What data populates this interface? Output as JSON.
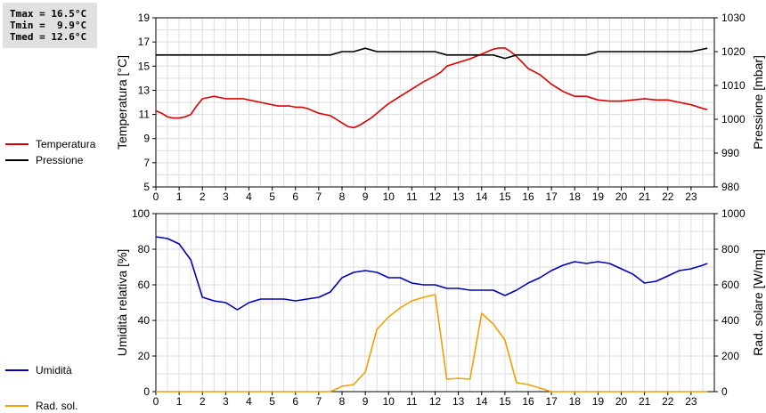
{
  "stats": {
    "tmax": "Tmax = 16.5°C",
    "tmin": "Tmin =  9.9°C",
    "tmed": "Tmed = 12.6°C"
  },
  "legend": {
    "temperature": "Temperatura",
    "pressure": "Pressione",
    "humidity": "Umidità",
    "solar": "Rad. sol."
  },
  "colors": {
    "temperature": "#dd0000",
    "pressure": "#000000",
    "humidity": "#0000bb",
    "solar": "#f0a000",
    "grid": "#dddddd"
  },
  "chart_data": [
    {
      "type": "line",
      "ylabel": "Temperatura [°C]",
      "y2label": "Pressione [mbar]",
      "xlim": [
        0,
        24
      ],
      "ylim": [
        5,
        19
      ],
      "y2lim": [
        980,
        1030
      ],
      "xticks": [
        "0",
        "1",
        "2",
        "3",
        "4",
        "5",
        "6",
        "7",
        "8",
        "9",
        "10",
        "11",
        "12",
        "13",
        "14",
        "15",
        "16",
        "17",
        "18",
        "19",
        "20",
        "21",
        "22",
        "23"
      ],
      "yticks": [
        "5",
        "7",
        "9",
        "11",
        "13",
        "15",
        "17",
        "19"
      ],
      "y2ticks": [
        "980",
        "990",
        "1000",
        "1010",
        "1020",
        "1030"
      ],
      "grid": true,
      "series": [
        {
          "name": "Temperatura",
          "axis": "left",
          "x": [
            0,
            0.25,
            0.5,
            0.75,
            1,
            1.25,
            1.5,
            1.75,
            2,
            2.25,
            2.5,
            2.75,
            3,
            3.25,
            3.5,
            3.75,
            4,
            4.25,
            4.5,
            4.75,
            5,
            5.25,
            5.5,
            5.75,
            6,
            6.25,
            6.5,
            6.75,
            7,
            7.25,
            7.5,
            7.75,
            8,
            8.25,
            8.5,
            8.75,
            9,
            9.25,
            9.5,
            9.75,
            10,
            10.5,
            11,
            11.5,
            12,
            12.25,
            12.5,
            13,
            13.5,
            14,
            14.25,
            14.5,
            14.75,
            15,
            15.25,
            15.5,
            15.75,
            16,
            16.5,
            17,
            17.5,
            18,
            18.5,
            19,
            19.5,
            20,
            20.5,
            21,
            21.5,
            22,
            22.5,
            23,
            23.5,
            23.7
          ],
          "y": [
            11.3,
            11.1,
            10.8,
            10.7,
            10.7,
            10.8,
            11.0,
            11.7,
            12.3,
            12.4,
            12.5,
            12.4,
            12.3,
            12.3,
            12.3,
            12.3,
            12.2,
            12.1,
            12.0,
            11.9,
            11.8,
            11.7,
            11.7,
            11.7,
            11.6,
            11.6,
            11.5,
            11.3,
            11.1,
            11.0,
            10.9,
            10.6,
            10.3,
            10.0,
            9.9,
            10.1,
            10.4,
            10.7,
            11.1,
            11.5,
            11.9,
            12.5,
            13.1,
            13.7,
            14.2,
            14.5,
            15.0,
            15.3,
            15.6,
            16.0,
            16.2,
            16.4,
            16.5,
            16.5,
            16.2,
            15.8,
            15.3,
            14.8,
            14.3,
            13.5,
            12.9,
            12.5,
            12.5,
            12.2,
            12.1,
            12.1,
            12.2,
            12.3,
            12.2,
            12.2,
            12.0,
            11.8,
            11.5,
            11.4
          ]
        },
        {
          "name": "Pressione",
          "axis": "right",
          "x": [
            0,
            0.5,
            1,
            2,
            3,
            4,
            5,
            6,
            7,
            7.5,
            8,
            8.5,
            9,
            9.5,
            10,
            11,
            12,
            12.5,
            13,
            14,
            14.5,
            15,
            15.5,
            16,
            17,
            18,
            18.5,
            19,
            20,
            21,
            22,
            23,
            23.7
          ],
          "y": [
            1019,
            1019,
            1019,
            1019,
            1019,
            1019,
            1019,
            1019,
            1019,
            1019,
            1020,
            1020,
            1021,
            1020,
            1020,
            1020,
            1020,
            1019,
            1019,
            1019,
            1019,
            1018,
            1019,
            1019,
            1019,
            1019,
            1019,
            1020,
            1020,
            1020,
            1020,
            1020,
            1021
          ]
        }
      ]
    },
    {
      "type": "line",
      "ylabel": "Umidità relativa [%]",
      "y2label": "Rad. solare [W/mq]",
      "xlim": [
        0,
        24
      ],
      "ylim": [
        0,
        100
      ],
      "y2lim": [
        0,
        1000
      ],
      "xticks": [
        "0",
        "1",
        "2",
        "3",
        "4",
        "5",
        "6",
        "7",
        "8",
        "9",
        "10",
        "11",
        "12",
        "13",
        "14",
        "15",
        "16",
        "17",
        "18",
        "19",
        "20",
        "21",
        "22",
        "23"
      ],
      "yticks": [
        "0",
        "20",
        "40",
        "60",
        "80",
        "100"
      ],
      "y2ticks": [
        "0",
        "200",
        "400",
        "600",
        "800",
        "1000"
      ],
      "grid": true,
      "series": [
        {
          "name": "Umidità",
          "axis": "left",
          "x": [
            0,
            0.5,
            1,
            1.5,
            2,
            2.5,
            3,
            3.5,
            4,
            4.5,
            5,
            5.5,
            6,
            6.5,
            7,
            7.5,
            8,
            8.5,
            9,
            9.5,
            10,
            10.5,
            11,
            11.5,
            12,
            12.5,
            13,
            13.5,
            14,
            14.5,
            15,
            15.5,
            16,
            16.5,
            17,
            17.5,
            18,
            18.5,
            19,
            19.5,
            20,
            20.5,
            21,
            21.5,
            22,
            22.5,
            23,
            23.5,
            23.7
          ],
          "y": [
            87,
            86,
            83,
            74,
            53,
            51,
            50,
            46,
            50,
            52,
            52,
            52,
            51,
            52,
            53,
            56,
            64,
            67,
            68,
            67,
            64,
            64,
            61,
            60,
            60,
            58,
            58,
            57,
            57,
            57,
            54,
            57,
            61,
            64,
            68,
            71,
            73,
            72,
            73,
            72,
            69,
            66,
            61,
            62,
            65,
            68,
            69,
            71,
            72
          ]
        },
        {
          "name": "Rad. sol.",
          "axis": "right",
          "x": [
            0,
            1,
            2,
            3,
            4,
            5,
            6,
            7,
            7.5,
            8,
            8.5,
            9,
            9.5,
            10,
            10.5,
            11,
            11.5,
            12,
            12.5,
            13,
            13.5,
            14,
            14.5,
            15,
            15.5,
            16,
            16.5,
            17,
            18,
            19,
            20,
            21,
            22,
            23,
            23.7
          ],
          "y": [
            0,
            0,
            0,
            0,
            0,
            0,
            0,
            0,
            0,
            30,
            40,
            110,
            350,
            420,
            470,
            510,
            530,
            545,
            70,
            75,
            70,
            440,
            380,
            290,
            50,
            40,
            20,
            0,
            0,
            0,
            0,
            0,
            0,
            0,
            0
          ]
        }
      ]
    }
  ]
}
